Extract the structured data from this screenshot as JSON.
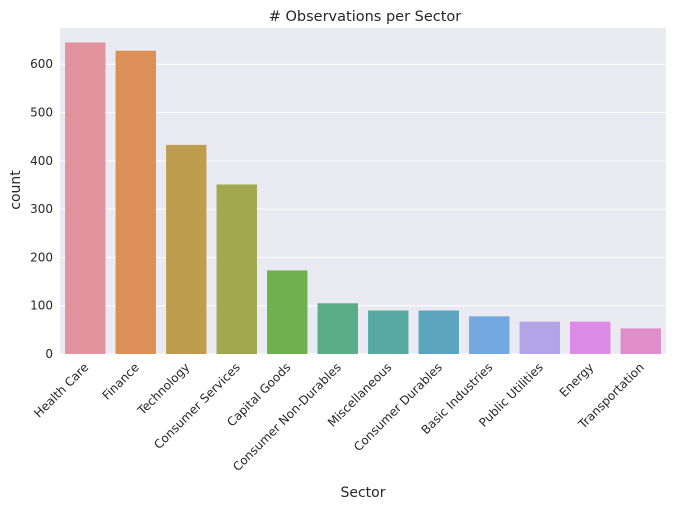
{
  "chart_data": {
    "type": "bar",
    "title": "# Observations per Sector",
    "xlabel": "Sector",
    "ylabel": "count",
    "categories": [
      "Health Care",
      "Finance",
      "Technology",
      "Consumer Services",
      "Capital Goods",
      "Consumer Non-Durables",
      "Miscellaneous",
      "Consumer Durables",
      "Basic Industries",
      "Public Utilities",
      "Energy",
      "Transportation"
    ],
    "values": [
      645,
      628,
      433,
      351,
      173,
      105,
      90,
      90,
      78,
      67,
      67,
      53
    ],
    "colors": [
      "#e1949e",
      "#dc9057",
      "#bd9e4e",
      "#a2a84f",
      "#6fb14c",
      "#5aad86",
      "#57aaa2",
      "#5ba6be",
      "#73a8e0",
      "#b2a4e6",
      "#dd89e6",
      "#df8ec9"
    ],
    "yticks": [
      0,
      100,
      200,
      300,
      400,
      500,
      600
    ],
    "ylim": [
      0,
      675
    ],
    "grid": true,
    "background": "#eaeaf2"
  }
}
